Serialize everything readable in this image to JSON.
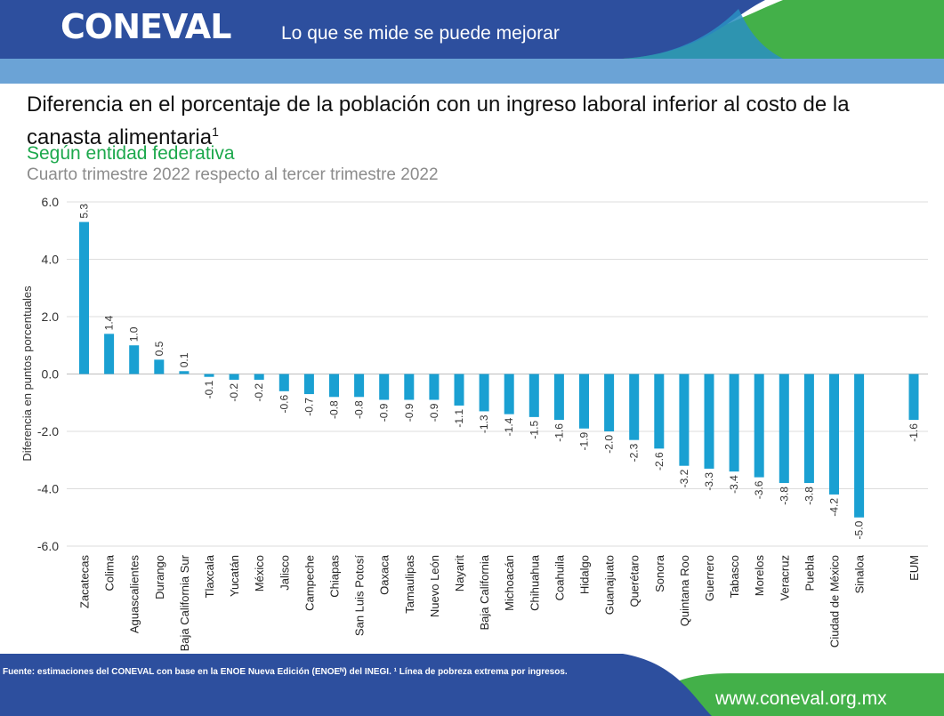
{
  "header": {
    "logo_text": "CONEVAL",
    "tagline": "Lo que se mide se puede mejorar"
  },
  "title": {
    "main": "Diferencia en el porcentaje de la población con un ingreso laboral inferior al costo de la canasta alimentaria",
    "main_sup": "1",
    "subtitle": "Según entidad federativa",
    "period": "Cuarto trimestre 2022 respecto al tercer trimestre 2022"
  },
  "chart_data": {
    "type": "bar",
    "ylabel": "Diferencia en puntos porcentuales",
    "ylim": [
      -6,
      6
    ],
    "yticks": [
      "6.0",
      "4.0",
      "2.0",
      "0.0",
      "-2.0",
      "-4.0",
      "-6.0"
    ],
    "categories": [
      "Zacatecas",
      "Colima",
      "Aguascalientes",
      "Durango",
      "Baja California Sur",
      "Tlaxcala",
      "Yucatán",
      "México",
      "Jalisco",
      "Campeche",
      "Chiapas",
      "San Luis Potosí",
      "Oaxaca",
      "Tamaulipas",
      "Nuevo León",
      "Nayarit",
      "Baja California",
      "Michoacán",
      "Chihuahua",
      "Coahuila",
      "Hidalgo",
      "Guanajuato",
      "Querétaro",
      "Sonora",
      "Quintana Roo",
      "Guerrero",
      "Tabasco",
      "Morelos",
      "Veracruz",
      "Puebla",
      "Ciudad de México",
      "Sinaloa",
      "EUM"
    ],
    "values": [
      5.3,
      1.4,
      1.0,
      0.5,
      0.1,
      -0.1,
      -0.2,
      -0.2,
      -0.6,
      -0.7,
      -0.8,
      -0.8,
      -0.9,
      -0.9,
      -0.9,
      -1.1,
      -1.3,
      -1.4,
      -1.5,
      -1.6,
      -1.9,
      -2.0,
      -2.3,
      -2.6,
      -3.2,
      -3.3,
      -3.4,
      -3.6,
      -3.8,
      -3.8,
      -4.2,
      -5.0,
      -1.6
    ],
    "labels": [
      "5.3",
      "1.4",
      "1.0",
      "0.5",
      "0.1",
      "-0.1",
      "-0.2",
      "-0.2",
      "-0.6",
      "-0.7",
      "-0.8",
      "-0.8",
      "-0.9",
      "-0.9",
      "-0.9",
      "-1.1",
      "-1.3",
      "-1.4",
      "-1.5",
      "-1.6",
      "-1.9",
      "-2.0",
      "-2.3",
      "-2.6",
      "-3.2",
      "-3.3",
      "-3.4",
      "-3.6",
      "-3.8",
      "-3.8",
      "-4.2",
      "-5.0",
      "-1.6"
    ],
    "bar_color": "#1aa0d2",
    "grid": true
  },
  "footer": {
    "source": "Fuente: estimaciones del CONEVAL con base en la ENOE Nueva Edición (ENOEᴺ) del INEGI. ¹ Línea de pobreza extrema por ingresos.",
    "url": "www.coneval.org.mx"
  },
  "colors": {
    "brand_blue": "#2d4f9e",
    "brand_green": "#43b049",
    "light_blue": "#6ba3d6",
    "bar": "#1aa0d2",
    "subtitle_green": "#1ca84c"
  }
}
